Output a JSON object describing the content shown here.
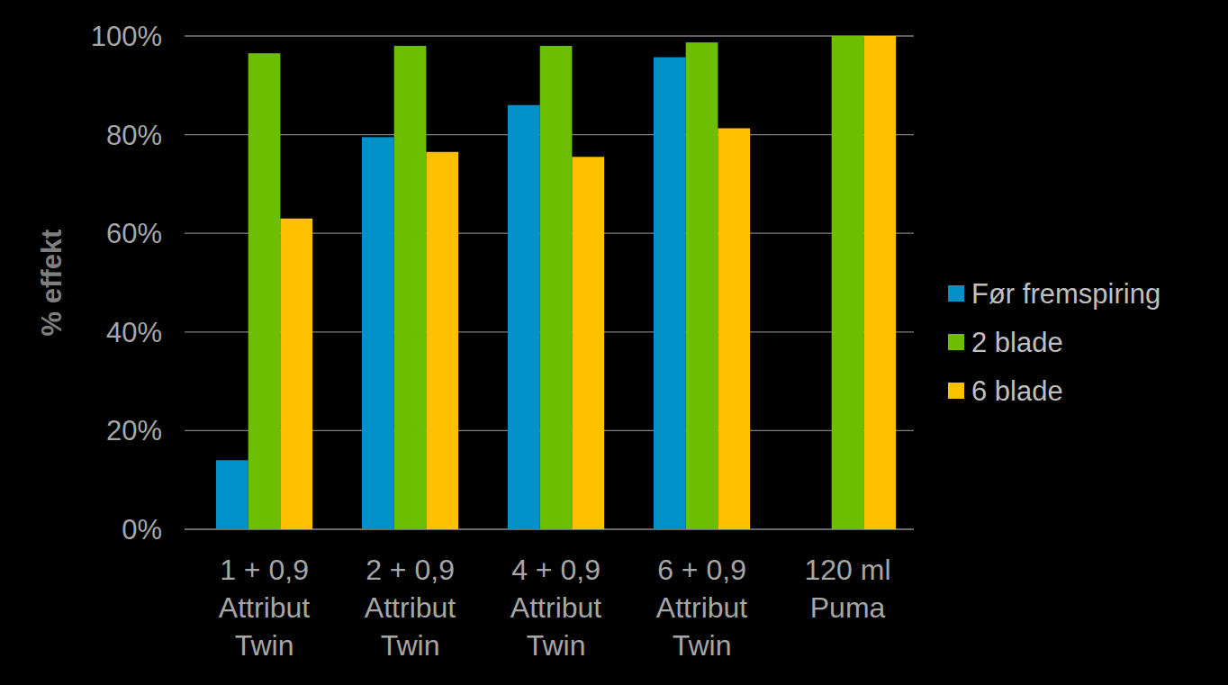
{
  "chart_data": {
    "type": "bar",
    "y_label": "% effekt",
    "categories": [
      "1 + 0,9\nAttribut\nTwin",
      "2 + 0,9\nAttribut\nTwin",
      "4 + 0,9\nAttribut\nTwin",
      "6 + 0,9\nAttribut\nTwin",
      "120 ml\nPuma"
    ],
    "series": [
      {
        "name": "Før fremspiring",
        "color": "#0091c8",
        "values": [
          14,
          79.5,
          86,
          95.7,
          null
        ]
      },
      {
        "name": "2 blade",
        "color": "#6cbf00",
        "values": [
          96.5,
          98,
          98,
          98.7,
          100
        ]
      },
      {
        "name": "6 blade",
        "color": "#ffc000",
        "values": [
          63,
          76.5,
          75.5,
          81.3,
          100
        ]
      }
    ],
    "ylim": [
      0,
      100
    ],
    "yticks": [
      {
        "value": 0,
        "label": "0%"
      },
      {
        "value": 20,
        "label": "20%"
      },
      {
        "value": 40,
        "label": "40%"
      },
      {
        "value": 60,
        "label": "60%"
      },
      {
        "value": 80,
        "label": "80%"
      },
      {
        "value": 100,
        "label": "100%"
      }
    ],
    "grid": true,
    "legend": "right"
  }
}
